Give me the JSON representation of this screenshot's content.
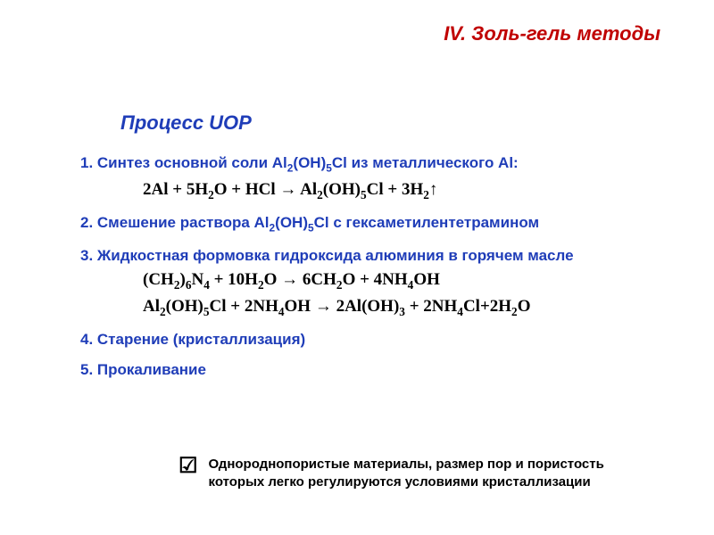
{
  "colors": {
    "header": "#c00000",
    "sectionTitle": "#1f3db8",
    "stepText": "#1f3db8",
    "equation": "#000000",
    "footnote": "#000000",
    "background": "#ffffff"
  },
  "fonts": {
    "header_size": 22,
    "section_size": 22,
    "step_size": 17,
    "equation_size": 19,
    "footnote_size": 15
  },
  "header": "IV. Золь-гель методы",
  "sectionTitle": "Процесс UOP",
  "steps": {
    "s1": {
      "label_pre": "1.  Синтез основной соли Al",
      "label_mid1": "(OH)",
      "label_post": "Cl из металлического Al:",
      "eq_parts": {
        "p1": "2Al + 5H",
        "p2": "O + HCl  →  Al",
        "p3": "(OH)",
        "p4": "Cl + 3H",
        "p5": "↑"
      }
    },
    "s2": {
      "label_pre": "2. Смешение раствора Al",
      "label_mid1": "(OH)",
      "label_post": "Cl с гексаметилентетрамином"
    },
    "s3": {
      "label": "3. Жидкостная формовка гидроксида алюминия в горячем масле",
      "eq1": {
        "p1": "(CH",
        "p2": ")",
        "p3": "N",
        "p4": " + 10H",
        "p5": "O  →  6CH",
        "p6": "O  +  4NH",
        "p7": "OH"
      },
      "eq2": {
        "p1": "Al",
        "p2": "(OH)",
        "p3": "Cl + 2NH",
        "p4": "OH  →  2Al(OH)",
        "p5": " + 2NH",
        "p6": "Cl+2H",
        "p7": "O"
      }
    },
    "s4": {
      "label": "4. Старение (кристаллизация)"
    },
    "s5": {
      "label": "5. Прокаливание"
    }
  },
  "subscripts": {
    "two": "2",
    "three": "3",
    "four": "4",
    "five": "5",
    "six": "6"
  },
  "footnote": {
    "icon": "☑",
    "text": "Однороднопористые материалы, размер пор и пористость которых легко регулируются условиями кристаллизации"
  }
}
